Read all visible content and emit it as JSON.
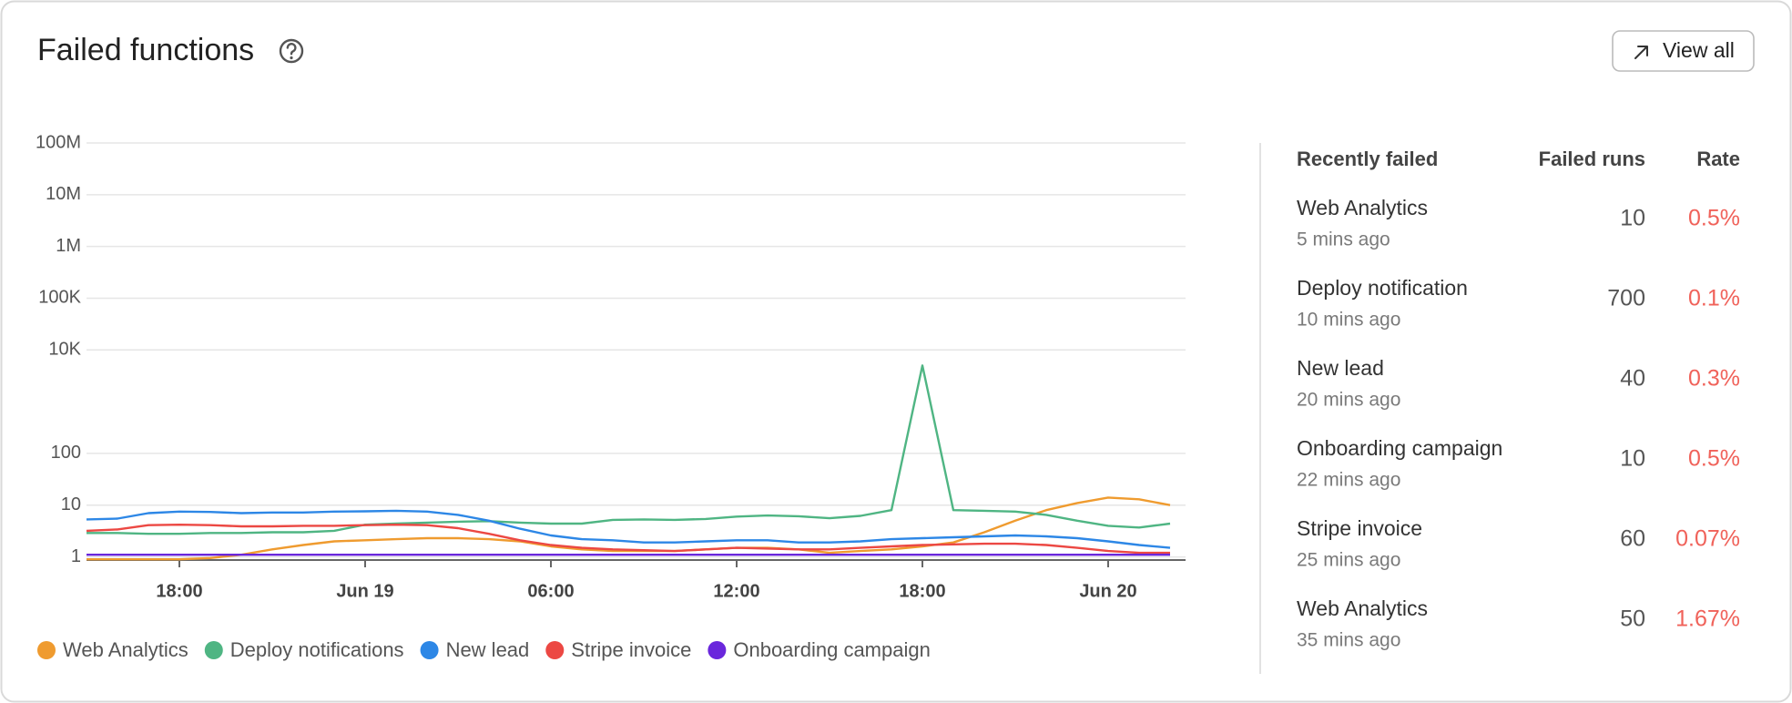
{
  "header": {
    "title": "Failed functions",
    "action": "View all"
  },
  "chart_data": {
    "type": "line",
    "y_scale": "log",
    "grid": true,
    "legend": "bottom",
    "x": [
      "Jun 18 15:00",
      "Jun 18 16:00",
      "Jun 18 17:00",
      "Jun 18 18:00",
      "Jun 18 19:00",
      "Jun 18 20:00",
      "Jun 18 21:00",
      "Jun 18 22:00",
      "Jun 18 23:00",
      "Jun 19 00:00",
      "Jun 19 01:00",
      "Jun 19 02:00",
      "Jun 19 03:00",
      "Jun 19 04:00",
      "Jun 19 05:00",
      "Jun 19 06:00",
      "Jun 19 07:00",
      "Jun 19 08:00",
      "Jun 19 09:00",
      "Jun 19 10:00",
      "Jun 19 11:00",
      "Jun 19 12:00",
      "Jun 19 13:00",
      "Jun 19 14:00",
      "Jun 19 15:00",
      "Jun 19 16:00",
      "Jun 19 17:00",
      "Jun 19 18:00",
      "Jun 19 19:00",
      "Jun 19 20:00",
      "Jun 19 21:00",
      "Jun 19 22:00",
      "Jun 19 23:00",
      "Jun 20 00:00",
      "Jun 20 01:00",
      "Jun 20 02:00"
    ],
    "xlim": [
      "Jun 18 15:00",
      "Jun 20 02:30"
    ],
    "xticks": [
      {
        "value": "Jun 18 18:00",
        "label": "18:00"
      },
      {
        "value": "Jun 19 00:00",
        "label": "Jun 19"
      },
      {
        "value": "Jun 19 06:00",
        "label": "06:00"
      },
      {
        "value": "Jun 19 12:00",
        "label": "12:00"
      },
      {
        "value": "Jun 19 18:00",
        "label": "18:00"
      },
      {
        "value": "Jun 20 00:00",
        "label": "Jun 20"
      }
    ],
    "ylim": [
      0.87,
      100000000
    ],
    "yticks": [
      1,
      10,
      100,
      {
        "value": 10000,
        "label": "10K"
      },
      {
        "value": 100000,
        "label": "100K"
      },
      {
        "value": 1000000,
        "label": "1M"
      },
      {
        "value": 10000000,
        "label": "10M"
      },
      {
        "value": 100000000,
        "label": "100M"
      }
    ],
    "series": [
      {
        "name": "Web Analytics",
        "color": "#ef9b2f",
        "values": [
          0.9,
          0.9,
          0.9,
          0.9,
          0.95,
          1.1,
          1.4,
          1.7,
          2.0,
          2.1,
          2.2,
          2.3,
          2.3,
          2.2,
          2.0,
          1.6,
          1.4,
          1.3,
          1.3,
          1.3,
          1.4,
          1.5,
          1.5,
          1.4,
          1.2,
          1.3,
          1.4,
          1.6,
          1.9,
          3,
          5,
          8,
          11,
          14,
          13,
          10
        ]
      },
      {
        "name": "Deploy notifications",
        "color": "#4fb583",
        "values": [
          2.9,
          2.9,
          2.8,
          2.8,
          2.9,
          2.9,
          3,
          3,
          3.2,
          4.2,
          4.4,
          4.6,
          4.8,
          4.9,
          4.6,
          4.4,
          4.4,
          5.2,
          5.3,
          5.2,
          5.4,
          6,
          6.3,
          6.1,
          5.6,
          6.2,
          8,
          5000,
          8,
          7.8,
          7.5,
          6.5,
          5,
          4,
          3.7,
          4.4
        ]
      },
      {
        "name": "New lead",
        "color": "#2d87e6",
        "values": [
          5.3,
          5.5,
          7,
          7.5,
          7.4,
          7,
          7.2,
          7.2,
          7.5,
          7.6,
          7.8,
          7.5,
          6.5,
          5,
          3.5,
          2.6,
          2.2,
          2.1,
          1.9,
          1.9,
          2,
          2.1,
          2.1,
          1.9,
          1.9,
          2,
          2.2,
          2.3,
          2.4,
          2.5,
          2.6,
          2.5,
          2.3,
          2,
          1.7,
          1.5
        ]
      },
      {
        "name": "Stripe invoice",
        "color": "#ec4843",
        "values": [
          3.2,
          3.4,
          4.1,
          4.2,
          4.1,
          3.9,
          3.9,
          4,
          4,
          4.1,
          4.2,
          4.1,
          3.6,
          2.8,
          2.1,
          1.7,
          1.5,
          1.4,
          1.35,
          1.3,
          1.4,
          1.5,
          1.45,
          1.4,
          1.4,
          1.5,
          1.6,
          1.7,
          1.75,
          1.8,
          1.8,
          1.7,
          1.5,
          1.3,
          1.2,
          1.2
        ]
      },
      {
        "name": "Onboarding campaign",
        "color": "#6a27dc",
        "values": [
          1.1,
          1.1,
          1.1,
          1.1,
          1.1,
          1.1,
          1.1,
          1.1,
          1.1,
          1.1,
          1.1,
          1.1,
          1.1,
          1.1,
          1.1,
          1.1,
          1.1,
          1.1,
          1.1,
          1.1,
          1.1,
          1.1,
          1.1,
          1.1,
          1.1,
          1.1,
          1.1,
          1.1,
          1.1,
          1.1,
          1.1,
          1.1,
          1.1,
          1.1,
          1.1,
          1.1
        ]
      }
    ]
  },
  "table": {
    "columns": [
      "Recently failed",
      "Failed runs",
      "Rate"
    ],
    "rows": [
      [
        "Web Analytics",
        "5 mins ago",
        10,
        "0.5%"
      ],
      [
        "Deploy notification",
        "10 mins ago",
        700,
        "0.1%"
      ],
      [
        "New lead",
        "20 mins ago",
        40,
        "0.3%"
      ],
      [
        "Onboarding campaign",
        "22 mins ago",
        10,
        "0.5%"
      ],
      [
        "Stripe invoice",
        "25 mins ago",
        60,
        "0.07%"
      ],
      [
        "Web Analytics",
        "35 mins ago",
        50,
        "1.67%"
      ]
    ]
  }
}
